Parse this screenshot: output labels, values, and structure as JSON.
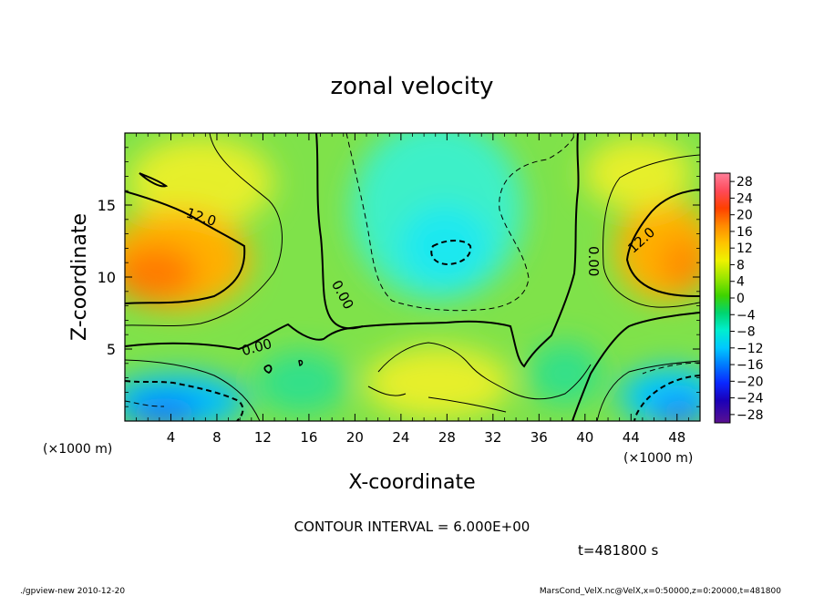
{
  "chart_data": {
    "type": "heatmap",
    "title": "zonal velocity",
    "xlabel": "X-coordinate",
    "ylabel": "Z-coordinate",
    "x_unit": "(×1000 m)",
    "y_unit": "(×1000 m)",
    "xlim": [
      0,
      50
    ],
    "ylim": [
      0,
      20
    ],
    "x_ticks": [
      "4",
      "8",
      "12",
      "16",
      "20",
      "24",
      "28",
      "32",
      "36",
      "40",
      "44",
      "48"
    ],
    "y_ticks": [
      "5",
      "10",
      "15"
    ],
    "contour_interval_text": "CONTOUR INTERVAL = 6.000E+00",
    "contour_labels": [
      "12.0",
      "12.0",
      "0.00",
      "0.00",
      "0.00"
    ],
    "colorbar": {
      "ticks": [
        "28",
        "24",
        "20",
        "16",
        "12",
        "8",
        "4",
        "0",
        "−4",
        "−8",
        "−12",
        "−16",
        "−20",
        "−24",
        "−28"
      ],
      "range": [
        -30,
        30
      ]
    },
    "time_text": "t=481800 s",
    "footer_left": "./gpview-new   2010-12-20",
    "footer_right": "MarsCond_VelX.nc@VelX,x=0:50000,z=0:20000,t=481800"
  }
}
